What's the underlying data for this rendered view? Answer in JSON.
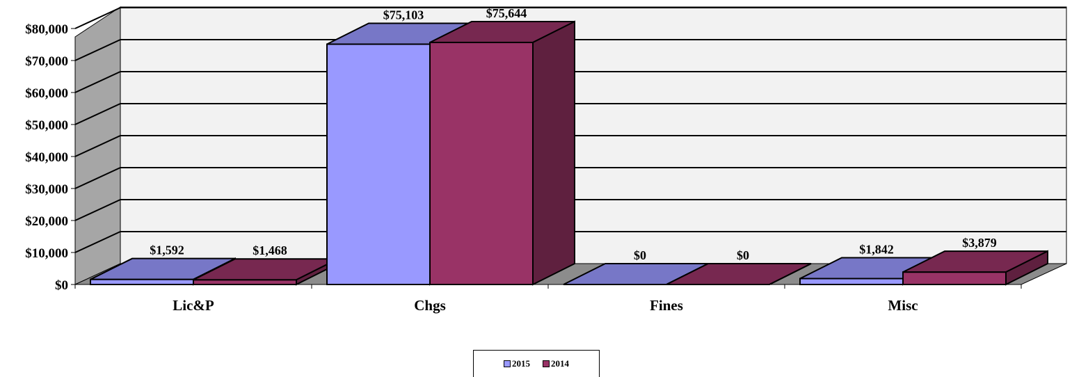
{
  "chart_data": {
    "type": "bar",
    "categories": [
      "Lic&P",
      "Chgs",
      "Fines",
      "Misc"
    ],
    "series": [
      {
        "name": "2015",
        "values": [
          1592,
          75103,
          0,
          1842
        ],
        "labels": [
          "$1,592",
          "$75,103",
          "$0",
          "$1,842"
        ],
        "color": "#9999ff"
      },
      {
        "name": "2014",
        "values": [
          1468,
          75644,
          0,
          3879
        ],
        "labels": [
          "$1,468",
          "$75,644",
          "$0",
          "$3,879"
        ],
        "color": "#993366"
      }
    ],
    "yticks": [
      "$0",
      "$10,000",
      "$20,000",
      "$30,000",
      "$40,000",
      "$50,000",
      "$60,000",
      "$70,000",
      "$80,000"
    ],
    "ylim": [
      0,
      80000
    ],
    "grid": true,
    "legend_position": "bottom",
    "colors": {
      "wall": "#f2f2f2",
      "side_wall": "#a6a6a6",
      "floor": "#8c8c8c"
    }
  }
}
